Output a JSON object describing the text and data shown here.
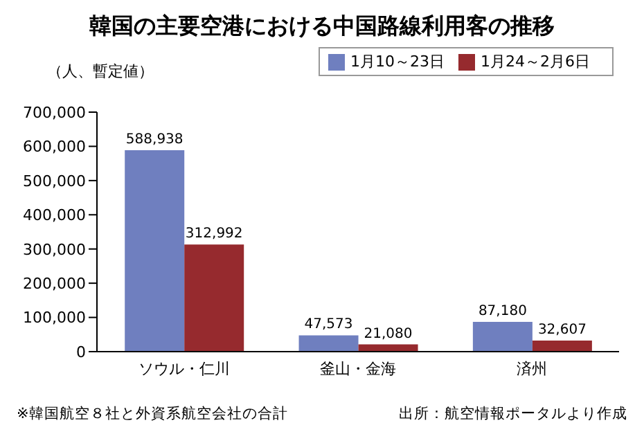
{
  "chart_data": {
    "type": "bar",
    "title": "韓国の主要空港における中国路線利用客の推移",
    "ylabel": "（人、暫定値）",
    "categories": [
      "ソウル・仁川",
      "釜山・金海",
      "済州"
    ],
    "series": [
      {
        "name": "1月10～23日",
        "color": "#6f7fbf",
        "values": [
          588938,
          47573,
          87180
        ],
        "value_labels": [
          "588,938",
          "47,573",
          "87,180"
        ]
      },
      {
        "name": "1月24～2月6日",
        "color": "#962a2e",
        "values": [
          312992,
          21080,
          32607
        ],
        "value_labels": [
          "312,992",
          "21,080",
          "32,607"
        ]
      }
    ],
    "ylim": [
      0,
      700000
    ],
    "yticks": [
      0,
      {
        "value": 100000,
        "label": "100,000"
      },
      {
        "value": 200000,
        "label": "200,000"
      },
      {
        "value": 300000,
        "label": "300,000"
      },
      {
        "value": 400000,
        "label": "400,000"
      },
      {
        "value": 500000,
        "label": "500,000"
      },
      {
        "value": 600000,
        "label": "600,000"
      },
      {
        "value": 700000,
        "label": "700,000"
      }
    ],
    "grid": false,
    "legend": "top right",
    "annotations": [
      "※韓国航空８社と外資系航空会社の合計",
      "出所：航空情報ポータルより作成"
    ]
  }
}
